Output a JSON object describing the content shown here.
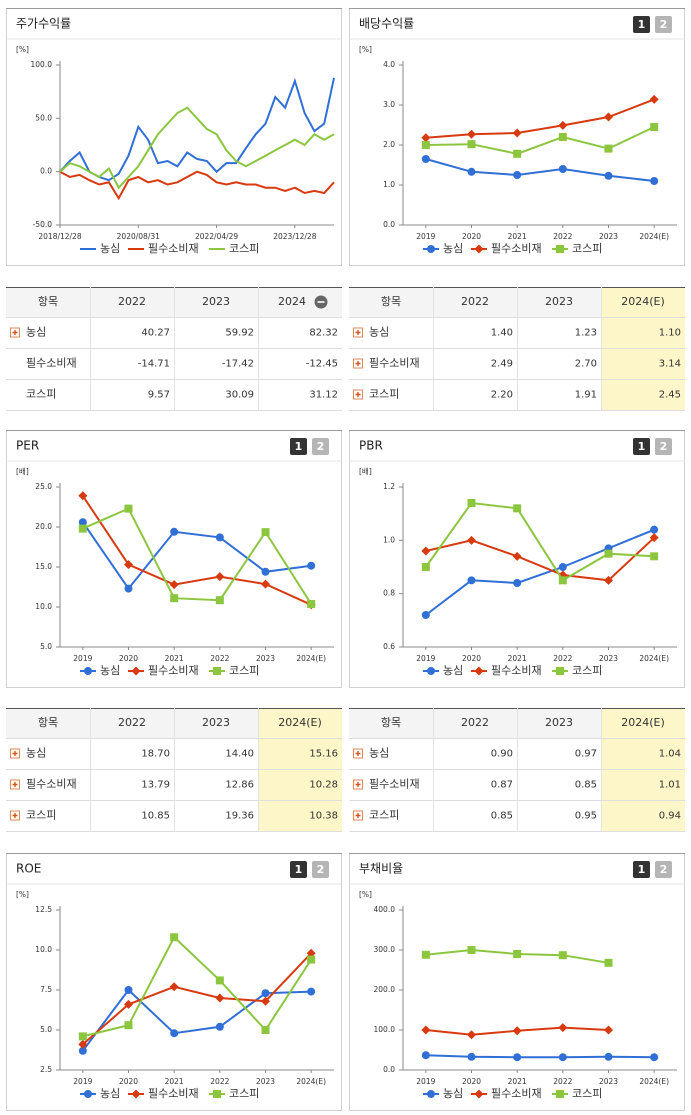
{
  "chart_data": [
    {
      "type": "line",
      "title": "주가수익률",
      "unit": "[%]",
      "categories": [
        "2018/12/28",
        null,
        null,
        null,
        null,
        null,
        null,
        null,
        "2020/08/31",
        null,
        null,
        null,
        null,
        null,
        null,
        null,
        "2022/04/29",
        null,
        null,
        null,
        null,
        null,
        null,
        null,
        "2023/12/28",
        null,
        null,
        null,
        null
      ],
      "ylim": [
        -50,
        100
      ],
      "yticks": [
        {
          "value": -50,
          "label": "-50.0"
        },
        {
          "value": 0,
          "label": "0.0"
        },
        {
          "value": 50,
          "label": "50.0"
        },
        {
          "value": 100,
          "label": "100.0"
        }
      ],
      "series": [
        {
          "name": "농심",
          "color": "#2f6fd6",
          "values": [
            0,
            10,
            18,
            0,
            -5,
            -8,
            -2,
            15,
            42,
            30,
            8,
            10,
            5,
            18,
            12,
            10,
            0,
            8,
            8,
            22,
            35,
            45,
            70,
            60,
            85,
            55,
            38,
            45,
            88
          ]
        },
        {
          "name": "필수소비재",
          "color": "#d83a0f",
          "values": [
            0,
            -5,
            -3,
            -8,
            -12,
            -10,
            -25,
            -8,
            -5,
            -10,
            -8,
            -12,
            -10,
            -5,
            0,
            -3,
            -10,
            -12,
            -10,
            -12,
            -12,
            -15,
            -15,
            -18,
            -15,
            -20,
            -18,
            -20,
            -10
          ]
        },
        {
          "name": "코스피",
          "color": "#8cc63f",
          "values": [
            0,
            8,
            5,
            0,
            -5,
            3,
            -15,
            -5,
            5,
            20,
            35,
            45,
            55,
            60,
            50,
            40,
            35,
            20,
            10,
            5,
            10,
            15,
            20,
            25,
            30,
            25,
            35,
            30,
            35
          ]
        }
      ]
    },
    {
      "type": "line",
      "title": "배당수익률",
      "unit": "[%]",
      "buttons": [
        "1",
        "2"
      ],
      "categories": [
        "2019",
        "2020",
        "2021",
        "2022",
        "2023",
        "2024(E)"
      ],
      "ylim": [
        0,
        4
      ],
      "yticks": [
        {
          "value": 0,
          "label": "0.0"
        },
        {
          "value": 1,
          "label": "1.0"
        },
        {
          "value": 2,
          "label": "2.0"
        },
        {
          "value": 3,
          "label": "3.0"
        },
        {
          "value": 4,
          "label": "4.0"
        }
      ],
      "series": [
        {
          "name": "농심",
          "color": "#2f6fd6",
          "values": [
            1.65,
            1.33,
            1.25,
            1.4,
            1.23,
            1.1
          ]
        },
        {
          "name": "필수소비재",
          "color": "#d83a0f",
          "values": [
            2.18,
            2.27,
            2.3,
            2.49,
            2.7,
            3.14
          ]
        },
        {
          "name": "코스피",
          "color": "#8cc63f",
          "values": [
            2.0,
            2.02,
            1.78,
            2.2,
            1.91,
            2.45
          ]
        }
      ]
    },
    {
      "type": "line",
      "title": "PER",
      "unit": "[배]",
      "buttons": [
        "1",
        "2"
      ],
      "categories": [
        "2019",
        "2020",
        "2021",
        "2022",
        "2023",
        "2024(E)"
      ],
      "ylim": [
        5,
        25
      ],
      "yticks": [
        {
          "value": 5,
          "label": "5.0"
        },
        {
          "value": 10,
          "label": "10.0"
        },
        {
          "value": 15,
          "label": "15.0"
        },
        {
          "value": 20,
          "label": "20.0"
        },
        {
          "value": 25,
          "label": "25.0"
        }
      ],
      "series": [
        {
          "name": "농심",
          "color": "#2f6fd6",
          "values": [
            20.6,
            12.3,
            19.4,
            18.7,
            14.4,
            15.16
          ]
        },
        {
          "name": "필수소비재",
          "color": "#d83a0f",
          "values": [
            23.9,
            15.3,
            12.8,
            13.79,
            12.86,
            10.28
          ]
        },
        {
          "name": "코스피",
          "color": "#8cc63f",
          "values": [
            19.8,
            22.3,
            11.1,
            10.85,
            19.36,
            10.38
          ]
        }
      ]
    },
    {
      "type": "line",
      "title": "PBR",
      "unit": "[배]",
      "buttons": [
        "1",
        "2"
      ],
      "categories": [
        "2019",
        "2020",
        "2021",
        "2022",
        "2023",
        "2024(E)"
      ],
      "ylim": [
        0.6,
        1.2
      ],
      "yticks": [
        0.6,
        0.8,
        {
          "value": 1,
          "label": "1.0"
        },
        1.2
      ],
      "series": [
        {
          "name": "농심",
          "color": "#2f6fd6",
          "values": [
            0.72,
            0.85,
            0.84,
            0.9,
            0.97,
            1.04
          ]
        },
        {
          "name": "필수소비재",
          "color": "#d83a0f",
          "values": [
            0.96,
            1.0,
            0.94,
            0.87,
            0.85,
            1.01
          ]
        },
        {
          "name": "코스피",
          "color": "#8cc63f",
          "values": [
            0.9,
            1.14,
            1.12,
            0.85,
            0.95,
            0.94
          ]
        }
      ]
    },
    {
      "type": "line",
      "title": "ROE",
      "unit": "[%]",
      "buttons": [
        "1",
        "2"
      ],
      "categories": [
        "2019",
        "2020",
        "2021",
        "2022",
        "2023",
        "2024(E)"
      ],
      "ylim": [
        2.5,
        12.5
      ],
      "yticks": [
        2.5,
        {
          "value": 5,
          "label": "5.0"
        },
        7.5,
        {
          "value": 10,
          "label": "10.0"
        },
        12.5
      ],
      "series": [
        {
          "name": "농심",
          "color": "#2f6fd6",
          "values": [
            3.7,
            7.5,
            4.8,
            5.2,
            7.3,
            7.4
          ]
        },
        {
          "name": "필수소비재",
          "color": "#d83a0f",
          "values": [
            4.1,
            6.6,
            7.7,
            7.0,
            6.8,
            9.8
          ]
        },
        {
          "name": "코스피",
          "color": "#8cc63f",
          "values": [
            4.6,
            5.3,
            10.8,
            8.1,
            5.0,
            9.4
          ]
        }
      ]
    },
    {
      "type": "line",
      "title": "부채비율",
      "unit": "[%]",
      "buttons": [
        "1",
        "2"
      ],
      "categories": [
        "2019",
        "2020",
        "2021",
        "2022",
        "2023",
        "2024(E)"
      ],
      "ylim": [
        0,
        400
      ],
      "yticks": [
        {
          "value": 0,
          "label": "0.0"
        },
        {
          "value": 100,
          "label": "100.0"
        },
        {
          "value": 200,
          "label": "200.0"
        },
        {
          "value": 300,
          "label": "300.0"
        },
        {
          "value": 400,
          "label": "400.0"
        }
      ],
      "series": [
        {
          "name": "농심",
          "color": "#2f6fd6",
          "values": [
            37,
            33,
            32,
            32,
            33,
            32
          ]
        },
        {
          "name": "필수소비재",
          "color": "#d83a0f",
          "values": [
            100,
            88,
            98,
            106,
            100,
            null
          ]
        },
        {
          "name": "코스피",
          "color": "#8cc63f",
          "values": [
            288,
            300,
            290,
            287,
            268,
            null
          ]
        }
      ]
    }
  ],
  "tables": [
    {
      "header": [
        "항목",
        "2022",
        "2023",
        "2024"
      ],
      "rows": [
        [
          "농심",
          "40.27",
          "59.92",
          "82.32"
        ],
        [
          "필수소비재",
          "-14.71",
          "-17.42",
          "-12.45"
        ],
        [
          "코스피",
          "9.57",
          "30.09",
          "31.12"
        ]
      ]
    },
    {
      "header": [
        "항목",
        "2022",
        "2023",
        "2024(E)"
      ],
      "rows": [
        [
          "농심",
          "1.40",
          "1.23",
          "1.10"
        ],
        [
          "필수소비재",
          "2.49",
          "2.70",
          "3.14"
        ],
        [
          "코스피",
          "2.20",
          "1.91",
          "2.45"
        ]
      ]
    },
    {
      "header": [
        "항목",
        "2022",
        "2023",
        "2024(E)"
      ],
      "rows": [
        [
          "농심",
          "18.70",
          "14.40",
          "15.16"
        ],
        [
          "필수소비재",
          "13.79",
          "12.86",
          "10.28"
        ],
        [
          "코스피",
          "10.85",
          "19.36",
          "10.38"
        ]
      ]
    },
    {
      "header": [
        "항목",
        "2022",
        "2023",
        "2024(E)"
      ],
      "rows": [
        [
          "농심",
          "0.90",
          "0.97",
          "1.04"
        ],
        [
          "필수소비재",
          "0.87",
          "0.85",
          "1.01"
        ],
        [
          "코스피",
          "0.85",
          "0.95",
          "0.94"
        ]
      ]
    }
  ]
}
